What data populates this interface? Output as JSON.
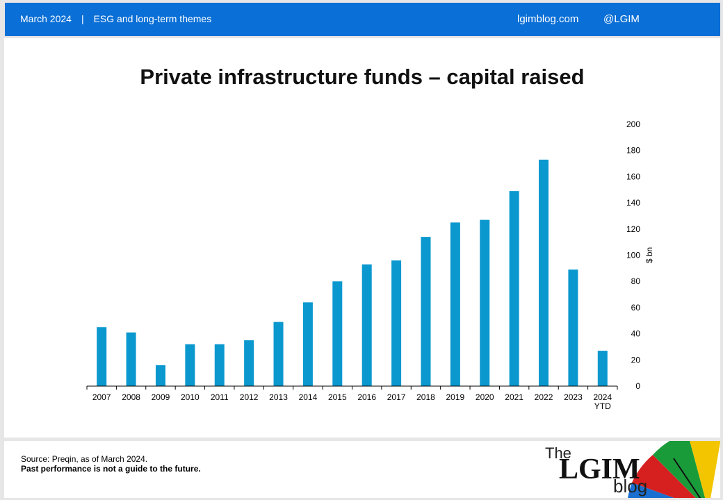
{
  "header": {
    "date": "March 2024",
    "separator": "|",
    "section": "ESG and long-term themes",
    "site": "lgimblog.com",
    "handle": "@LGIM"
  },
  "footer": {
    "source": "Source: Preqin, as of March 2024.",
    "disclaimer": "Past performance is not a guide to the future.",
    "logo_the": "The",
    "logo_main": "LGIM",
    "logo_blog": "blog"
  },
  "colors": {
    "header_bg": "#0a6fd6",
    "bar": "#0a98cf"
  },
  "chart_data": {
    "type": "bar",
    "title": "Private infrastructure funds – capital raised",
    "categories": [
      "2007",
      "2008",
      "2009",
      "2010",
      "2011",
      "2012",
      "2013",
      "2014",
      "2015",
      "2016",
      "2017",
      "2018",
      "2019",
      "2020",
      "2021",
      "2022",
      "2023",
      "2024\nYTD"
    ],
    "values": [
      45,
      41,
      16,
      32,
      32,
      35,
      49,
      64,
      80,
      93,
      96,
      114,
      125,
      127,
      149,
      173,
      89,
      27
    ],
    "ylabel": "$ bn",
    "ylim": [
      0,
      200
    ],
    "yticks": [
      0,
      20,
      40,
      60,
      80,
      100,
      120,
      140,
      160,
      180,
      200
    ],
    "y_axis_position": "right",
    "grid": false,
    "legend": false
  }
}
